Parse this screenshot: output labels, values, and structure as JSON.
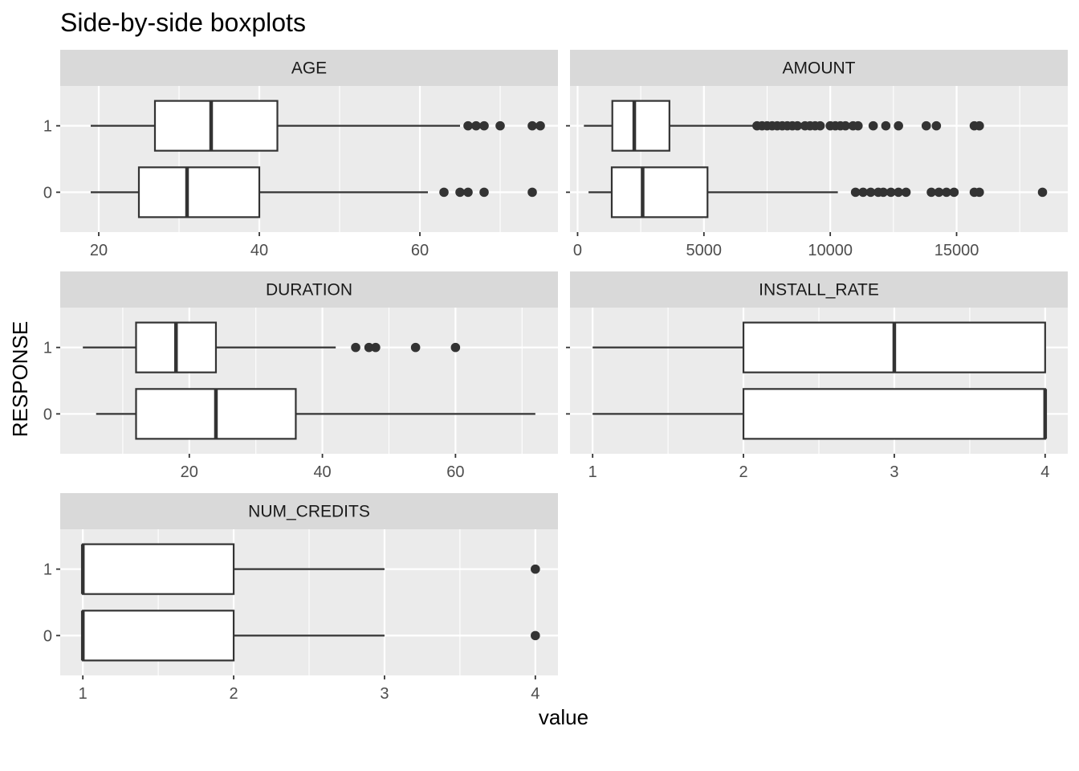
{
  "chart_data": {
    "type": "boxplot",
    "title": "Side-by-side boxplots",
    "xlabel": "value",
    "ylabel": "RESPONSE",
    "categories": [
      "0",
      "1"
    ],
    "colors": {
      "panel_bg": "#EBEBEB",
      "strip_bg": "#D9D9D9",
      "grid": "#FFFFFF",
      "box_fill": "#FFFFFF",
      "box_line": "#333333",
      "outlier": "#333333"
    },
    "facets": [
      {
        "label": "AGE",
        "xlim": [
          15.2,
          77.2
        ],
        "ticks": [
          20,
          40,
          60
        ],
        "tick_labels": [
          "20",
          "40",
          "60"
        ],
        "minor_ticks": [
          30,
          50,
          70
        ],
        "boxes": {
          "1": {
            "whisker_low": 19,
            "q1": 27,
            "median": 34,
            "q3": 42.25,
            "whisker_high": 65,
            "outliers": [
              66,
              67,
              68,
              70,
              74,
              75
            ]
          },
          "0": {
            "whisker_low": 19,
            "q1": 25,
            "median": 31,
            "q3": 40,
            "whisker_high": 61,
            "outliers": [
              63,
              65,
              66,
              68,
              74
            ]
          }
        }
      },
      {
        "label": "AMOUNT",
        "xlim": [
          -300,
          19400
        ],
        "ticks": [
          0,
          5000,
          10000,
          15000
        ],
        "tick_labels": [
          "0",
          "5000",
          "10000",
          "15000"
        ],
        "minor_ticks": [
          2500,
          7500,
          12500,
          17500
        ],
        "boxes": {
          "1": {
            "whisker_low": 250,
            "q1": 1375,
            "median": 2244,
            "q3": 3635,
            "whisker_high": 7000,
            "outliers": [
              7100,
              7300,
              7500,
              7700,
              7900,
              8100,
              8300,
              8500,
              8700,
              9000,
              9200,
              9400,
              9600,
              10000,
              10200,
              10400,
              10600,
              10900,
              11100,
              11700,
              12200,
              12700,
              13800,
              14200,
              15700,
              15900
            ]
          },
          "0": {
            "whisker_low": 433,
            "q1": 1352,
            "median": 2574,
            "q3": 5142,
            "whisker_high": 10300,
            "outliers": [
              11000,
              11300,
              11600,
              11900,
              12100,
              12400,
              12700,
              13000,
              14000,
              14300,
              14600,
              14900,
              15700,
              15900,
              18400
            ]
          }
        }
      },
      {
        "label": "DURATION",
        "xlim": [
          0.6,
          75.4
        ],
        "ticks": [
          20,
          40,
          60
        ],
        "tick_labels": [
          "20",
          "40",
          "60"
        ],
        "minor_ticks": [
          10,
          30,
          50,
          70
        ],
        "boxes": {
          "1": {
            "whisker_low": 4,
            "q1": 12,
            "median": 18,
            "q3": 24,
            "whisker_high": 42,
            "outliers": [
              45,
              47,
              48,
              54,
              60
            ]
          },
          "0": {
            "whisker_low": 6,
            "q1": 12,
            "median": 24,
            "q3": 36,
            "whisker_high": 72,
            "outliers": []
          }
        }
      },
      {
        "label": "INSTALL_RATE",
        "xlim": [
          0.85,
          4.15
        ],
        "ticks": [
          1,
          2,
          3,
          4
        ],
        "tick_labels": [
          "1",
          "2",
          "3",
          "4"
        ],
        "minor_ticks": [
          1.5,
          2.5,
          3.5
        ],
        "boxes": {
          "1": {
            "whisker_low": 1,
            "q1": 2,
            "median": 3,
            "q3": 4,
            "whisker_high": 4,
            "outliers": []
          },
          "0": {
            "whisker_low": 1,
            "q1": 2,
            "median": 4,
            "q3": 4,
            "whisker_high": 4,
            "outliers": []
          }
        }
      },
      {
        "label": "NUM_CREDITS",
        "xlim": [
          0.85,
          4.15
        ],
        "ticks": [
          1,
          2,
          3,
          4
        ],
        "tick_labels": [
          "1",
          "2",
          "3",
          "4"
        ],
        "minor_ticks": [
          1.5,
          2.5,
          3.5
        ],
        "boxes": {
          "1": {
            "whisker_low": 1,
            "q1": 1,
            "median": 1,
            "q3": 2,
            "whisker_high": 3,
            "outliers": [
              4
            ]
          },
          "0": {
            "whisker_low": 1,
            "q1": 1,
            "median": 1,
            "q3": 2,
            "whisker_high": 3,
            "outliers": [
              4
            ]
          }
        }
      }
    ]
  }
}
